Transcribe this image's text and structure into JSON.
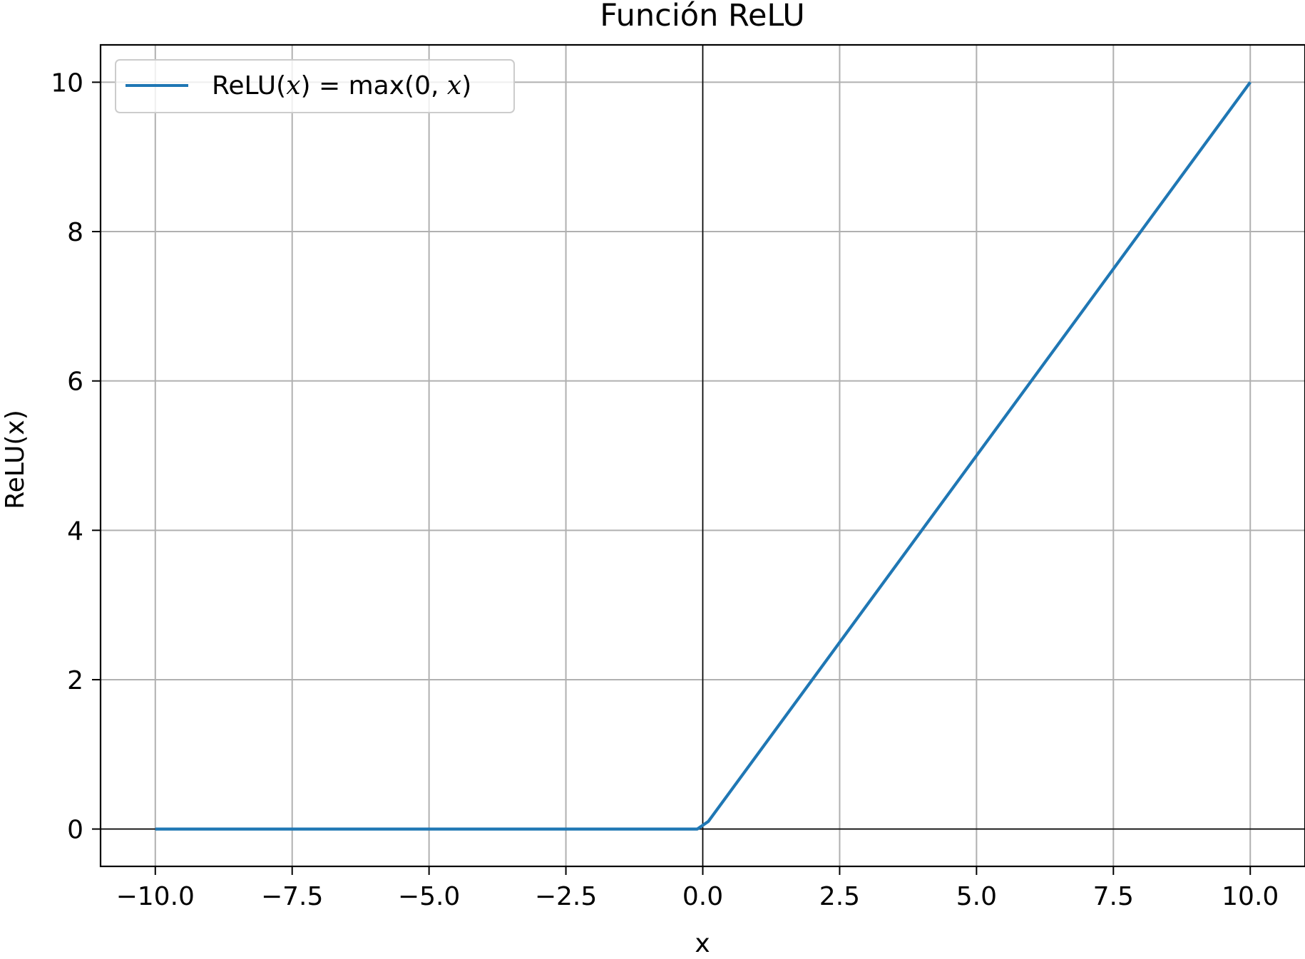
{
  "chart_data": {
    "type": "line",
    "title": "Función ReLU",
    "xlabel": "x",
    "ylabel": "ReLU(x)",
    "xlim": [
      -11,
      11
    ],
    "ylim": [
      -0.5,
      10.5
    ],
    "xticks": [
      -10.0,
      -7.5,
      -5.0,
      -2.5,
      0.0,
      2.5,
      5.0,
      7.5,
      10.0
    ],
    "xtick_labels": [
      "−10.0",
      "−7.5",
      "−5.0",
      "−2.5",
      "0.0",
      "2.5",
      "5.0",
      "7.5",
      "10.0"
    ],
    "yticks": [
      0,
      2,
      4,
      6,
      8,
      10
    ],
    "ytick_labels": [
      "0",
      "2",
      "4",
      "6",
      "8",
      "10"
    ],
    "grid": true,
    "legend_position": "top-left",
    "reference_lines": {
      "x0": true,
      "y0": true
    },
    "series": [
      {
        "name": "ReLU(x) = max(0, x)",
        "name_parts": {
          "fn": "ReLU(",
          "var1": "x",
          "mid": ") = max(0, ",
          "var2": "x",
          "end": ")"
        },
        "color": "#1f77b4",
        "x": [
          -10,
          -0.101,
          0.101,
          10
        ],
        "y": [
          0,
          0,
          0.101,
          10
        ]
      }
    ]
  }
}
